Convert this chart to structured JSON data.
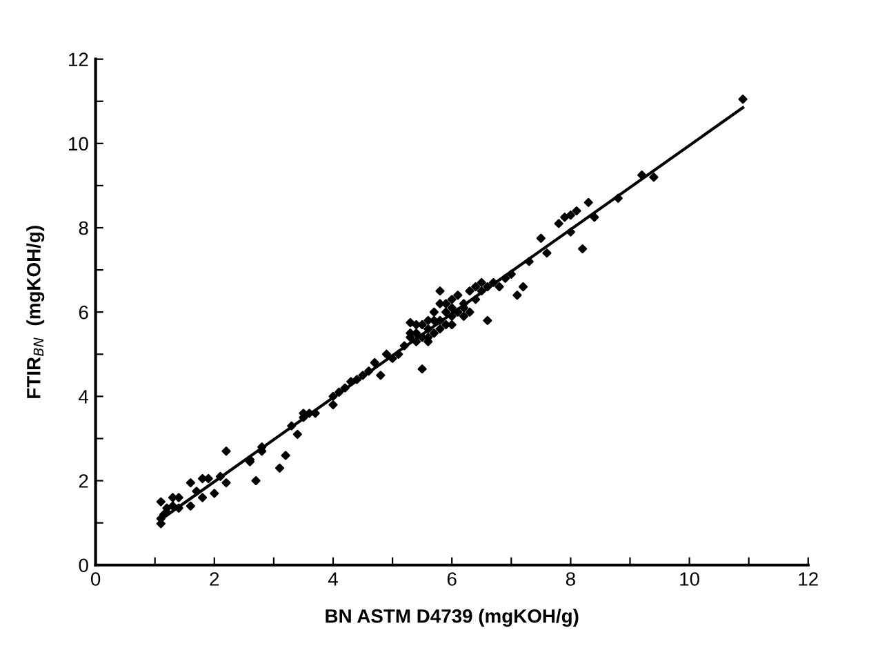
{
  "chart_data": {
    "type": "scatter",
    "xlabel": "BN ASTM D4739 (mgKOH/g)",
    "ylabel": "FTIR$_{BN}$  (mgKOH/g)",
    "xlim": [
      0,
      12
    ],
    "ylim": [
      0,
      12
    ],
    "xticks": [
      0,
      {
        "value": 1,
        "label": null
      },
      2,
      {
        "value": 3,
        "label": null
      },
      4,
      {
        "value": 5,
        "label": null
      },
      6,
      {
        "value": 7,
        "label": null
      },
      8,
      {
        "value": 9,
        "label": null
      },
      10,
      {
        "value": 11,
        "label": null
      },
      12
    ],
    "yticks": [
      0,
      {
        "value": 1,
        "label": null
      },
      2,
      {
        "value": 3,
        "label": null
      },
      4,
      {
        "value": 5,
        "label": null
      },
      6,
      {
        "value": 7,
        "label": null
      },
      8,
      {
        "value": 9,
        "label": null
      },
      10,
      {
        "value": 11,
        "label": null
      },
      12
    ],
    "grid": false,
    "marker": "diamond",
    "series": [
      {
        "color": "#000000",
        "x": [
          1.1,
          1.1,
          1.1,
          1.15,
          1.2,
          1.2,
          1.3,
          1.3,
          1.4,
          1.4,
          1.6,
          1.6,
          1.7,
          1.8,
          1.8,
          1.9,
          2.0,
          2.1,
          2.2,
          2.2,
          2.6,
          2.6,
          2.7,
          2.8,
          2.8,
          3.1,
          3.2,
          3.3,
          3.4,
          3.5,
          3.5,
          3.6,
          3.7,
          4.0,
          4.0,
          4.1,
          4.2,
          4.3,
          4.4,
          4.5,
          4.6,
          4.7,
          4.8,
          4.9,
          5.0,
          5.1,
          5.2,
          5.3,
          5.3,
          5.4,
          5.5,
          5.5,
          5.6,
          5.6,
          5.7,
          5.7,
          5.8,
          5.8,
          5.8,
          5.9,
          5.9,
          6.0,
          6.0,
          6.0,
          6.1,
          6.1,
          6.2,
          6.2,
          6.3,
          6.3,
          6.4,
          6.4,
          6.5,
          6.5,
          6.6,
          6.6,
          6.7,
          6.8,
          6.9,
          7.0,
          7.1,
          7.2,
          7.3,
          7.5,
          7.6,
          7.8,
          7.9,
          8.0,
          8.0,
          8.1,
          8.2,
          8.3,
          8.4,
          8.8,
          9.2,
          9.4,
          10.9,
          5.3,
          5.4,
          5.5,
          5.6,
          5.7,
          5.9,
          6.0,
          6.2,
          5.4,
          5.6,
          5.8
        ],
        "values": [
          0.98,
          1.1,
          1.5,
          1.2,
          1.35,
          1.25,
          1.6,
          1.4,
          1.6,
          1.35,
          1.4,
          1.95,
          1.75,
          1.6,
          2.05,
          2.05,
          1.7,
          2.1,
          1.95,
          2.7,
          2.5,
          2.45,
          2.0,
          2.7,
          2.8,
          2.3,
          2.6,
          3.3,
          3.1,
          3.5,
          3.6,
          3.6,
          3.6,
          4.0,
          3.8,
          4.1,
          4.2,
          4.35,
          4.4,
          4.5,
          4.6,
          4.8,
          4.5,
          5.0,
          4.9,
          5.0,
          5.2,
          5.4,
          5.75,
          5.5,
          4.65,
          5.4,
          5.6,
          5.8,
          5.5,
          6.0,
          5.8,
          6.2,
          6.5,
          5.7,
          6.0,
          6.1,
          5.9,
          6.3,
          6.0,
          6.4,
          6.2,
          5.9,
          6.5,
          6.0,
          6.6,
          6.3,
          6.5,
          6.7,
          6.6,
          5.8,
          6.7,
          6.6,
          6.8,
          6.9,
          6.4,
          6.6,
          7.2,
          7.75,
          7.4,
          8.1,
          8.25,
          8.3,
          7.9,
          8.4,
          7.5,
          8.6,
          8.25,
          8.7,
          9.25,
          9.2,
          11.05,
          5.5,
          5.3,
          5.7,
          5.4,
          5.8,
          6.2,
          5.7,
          6.1,
          5.7,
          5.3,
          5.6
        ]
      },
      {
        "type": "line",
        "color": "#000000",
        "x": [
          1.1,
          10.9
        ],
        "values": [
          1.08,
          10.85
        ],
        "marker": "none",
        "line_style": "solid"
      }
    ]
  }
}
